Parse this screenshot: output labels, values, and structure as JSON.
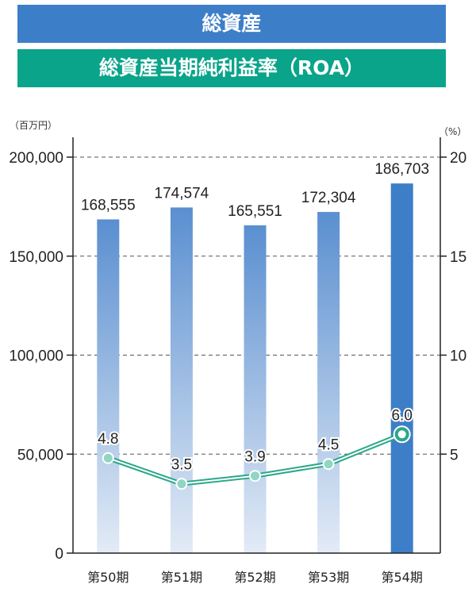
{
  "banners": {
    "top": "総資産",
    "sub": "総資産当期純利益率（ROA）"
  },
  "colors": {
    "banner_top": "#3d7ec8",
    "banner_sub": "#0aa48a",
    "bar_gradient_top": "#5a8fd0",
    "bar_gradient_bottom": "#e3ebf6",
    "bar_highlight": "#3d7ec8",
    "line": "#2aa889",
    "highlight_label": "#3d7ec8"
  },
  "chart_data": {
    "type": "bar",
    "categories": [
      "第50期",
      "第51期",
      "第52期",
      "第53期",
      "第54期"
    ],
    "highlight_index": 4,
    "left_axis": {
      "unit_label": "（百万円）",
      "ticks": [
        "0",
        "50,000",
        "100,000",
        "150,000",
        "200,000"
      ],
      "tick_values": [
        0,
        50000,
        100000,
        150000,
        200000
      ],
      "range": [
        0,
        200000
      ]
    },
    "right_axis": {
      "unit_label": "（%）",
      "ticks": [
        "5",
        "10",
        "15",
        "20"
      ],
      "tick_values": [
        5,
        10,
        15,
        20
      ],
      "range": [
        0,
        20
      ]
    },
    "grid": "dashed-horizontal",
    "series": [
      {
        "type": "bar",
        "axis": "left",
        "values": [
          168555,
          174574,
          165551,
          172304,
          186703
        ],
        "labels": [
          "168,555",
          "174,574",
          "165,551",
          "172,304",
          "186,703"
        ]
      },
      {
        "type": "line",
        "axis": "right",
        "values": [
          4.8,
          3.5,
          3.9,
          4.5,
          6.0
        ],
        "labels": [
          "4.8",
          "3.5",
          "3.9",
          "4.5",
          "6.0"
        ]
      }
    ]
  }
}
